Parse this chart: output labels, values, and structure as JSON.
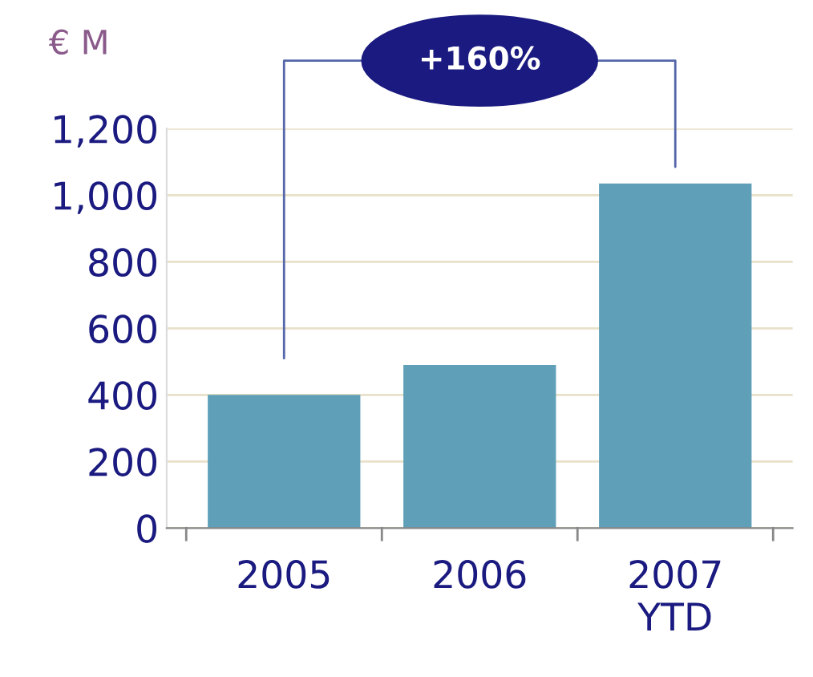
{
  "chart_data": {
    "type": "bar",
    "ylabel": "€ M",
    "categories": [
      "2005",
      "2006",
      "2007\nYTD"
    ],
    "values": [
      400,
      490,
      1035
    ],
    "color": "#5fa0b8",
    "ylim": [
      0,
      1200
    ],
    "yticks": [
      0,
      {
        "value": 200,
        "label": "200"
      },
      {
        "value": 400,
        "label": "400"
      },
      {
        "value": 600,
        "label": "600"
      },
      {
        "value": 800,
        "label": "800"
      },
      {
        "value": 1000,
        "label": "1,000"
      },
      {
        "value": 1200,
        "label": "1,200"
      }
    ],
    "grid": "y",
    "legend": false,
    "annotations": [
      "+160%"
    ]
  }
}
